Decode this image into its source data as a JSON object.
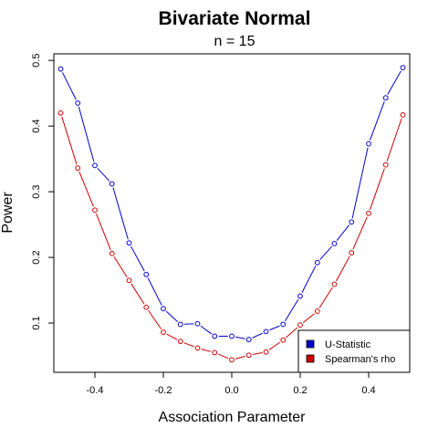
{
  "chart_data": {
    "type": "line",
    "title": "Bivariate Normal",
    "subtitle": "n = 15",
    "xlabel": "Association Parameter",
    "ylabel": "Power",
    "xlim": [
      -0.52,
      0.52
    ],
    "ylim": [
      0.025,
      0.51
    ],
    "xticks": [
      -0.4,
      -0.2,
      0.0,
      0.2,
      0.4
    ],
    "yticks": [
      0.1,
      0.2,
      0.3,
      0.4,
      0.5
    ],
    "x": [
      -0.5,
      -0.45,
      -0.4,
      -0.35,
      -0.3,
      -0.25,
      -0.2,
      -0.15,
      -0.1,
      -0.05,
      0.0,
      0.05,
      0.1,
      0.15,
      0.2,
      0.25,
      0.3,
      0.35,
      0.4,
      0.45,
      0.5
    ],
    "series": [
      {
        "name": "U-Statistic",
        "color": "#0000cc",
        "values": [
          0.487,
          0.435,
          0.34,
          0.312,
          0.222,
          0.174,
          0.122,
          0.098,
          0.099,
          0.08,
          0.08,
          0.075,
          0.087,
          0.098,
          0.141,
          0.192,
          0.221,
          0.254,
          0.373,
          0.443,
          0.489
        ]
      },
      {
        "name": "Spearman's rho",
        "color": "#cc0000",
        "values": [
          0.42,
          0.336,
          0.272,
          0.206,
          0.165,
          0.124,
          0.086,
          0.072,
          0.062,
          0.055,
          0.044,
          0.051,
          0.056,
          0.074,
          0.097,
          0.118,
          0.159,
          0.207,
          0.267,
          0.341,
          0.417
        ]
      }
    ],
    "grid": false,
    "legend_position": "bottom-right"
  }
}
